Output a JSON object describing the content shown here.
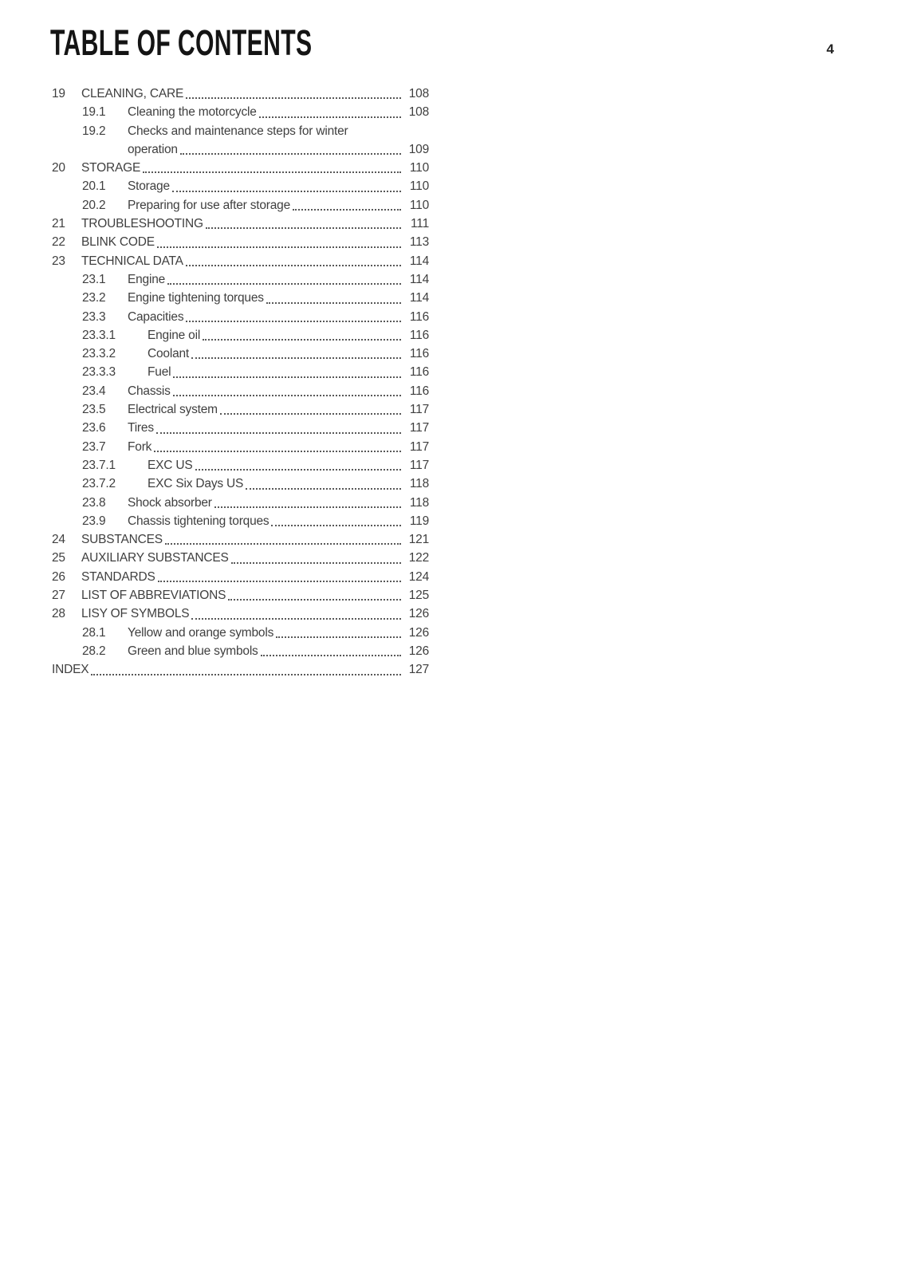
{
  "header": {
    "title": "TABLE OF CONTENTS",
    "page_number": "4"
  },
  "toc": {
    "entries": [
      {
        "num": "19",
        "label": "CLEANING, CARE",
        "page": "108",
        "level": 1
      },
      {
        "num": "19.1",
        "label": "Cleaning the motorcycle",
        "page": "108",
        "level": 2
      },
      {
        "num": "19.2",
        "label": "Checks and maintenance steps for winter",
        "label2": "operation",
        "page": "109",
        "level": 2
      },
      {
        "num": "20",
        "label": "STORAGE",
        "page": "110",
        "level": 1
      },
      {
        "num": "20.1",
        "label": "Storage",
        "page": "110",
        "level": 2
      },
      {
        "num": "20.2",
        "label": "Preparing for use after storage",
        "page": "110",
        "level": 2
      },
      {
        "num": "21",
        "label": "TROUBLESHOOTING",
        "page": "111",
        "level": 1
      },
      {
        "num": "22",
        "label": "BLINK CODE",
        "page": "113",
        "level": 1
      },
      {
        "num": "23",
        "label": "TECHNICAL DATA",
        "page": "114",
        "level": 1
      },
      {
        "num": "23.1",
        "label": "Engine",
        "page": "114",
        "level": 2
      },
      {
        "num": "23.2",
        "label": "Engine tightening torques",
        "page": "114",
        "level": 2
      },
      {
        "num": "23.3",
        "label": "Capacities",
        "page": "116",
        "level": 2
      },
      {
        "num": "23.3.1",
        "label": "Engine oil",
        "page": "116",
        "level": 3
      },
      {
        "num": "23.3.2",
        "label": "Coolant",
        "page": "116",
        "level": 3
      },
      {
        "num": "23.3.3",
        "label": "Fuel",
        "page": "116",
        "level": 3
      },
      {
        "num": "23.4",
        "label": "Chassis",
        "page": "116",
        "level": 2
      },
      {
        "num": "23.5",
        "label": "Electrical system",
        "page": "117",
        "level": 2
      },
      {
        "num": "23.6",
        "label": "Tires",
        "page": "117",
        "level": 2
      },
      {
        "num": "23.7",
        "label": "Fork",
        "page": "117",
        "level": 2
      },
      {
        "num": "23.7.1",
        "label": "EXC US",
        "page": "117",
        "level": 3
      },
      {
        "num": "23.7.2",
        "label": "EXC Six Days US",
        "page": "118",
        "level": 3
      },
      {
        "num": "23.8",
        "label": "Shock absorber",
        "page": "118",
        "level": 2
      },
      {
        "num": "23.9",
        "label": "Chassis tightening torques",
        "page": "119",
        "level": 2
      },
      {
        "num": "24",
        "label": "SUBSTANCES",
        "page": "121",
        "level": 1
      },
      {
        "num": "25",
        "label": "AUXILIARY SUBSTANCES",
        "page": "122",
        "level": 1
      },
      {
        "num": "26",
        "label": "STANDARDS",
        "page": "124",
        "level": 1
      },
      {
        "num": "27",
        "label": "LIST OF ABBREVIATIONS",
        "page": "125",
        "level": 1
      },
      {
        "num": "28",
        "label": "LISY OF SYMBOLS",
        "page": "126",
        "level": 1
      },
      {
        "num": "28.1",
        "label": "Yellow and orange symbols",
        "page": "126",
        "level": 2
      },
      {
        "num": "28.2",
        "label": "Green and blue symbols",
        "page": "126",
        "level": 2
      },
      {
        "num": "",
        "label": "INDEX",
        "page": "127",
        "level": 0
      }
    ]
  }
}
